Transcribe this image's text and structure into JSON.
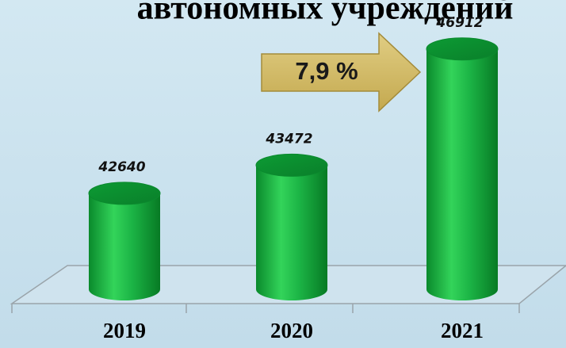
{
  "chart_data": {
    "type": "cylinder-bar",
    "title": "автономных учреждений",
    "categories": [
      "2019",
      "2020",
      "2021"
    ],
    "values": [
      42640,
      43472,
      46912
    ],
    "ylim": [
      39800,
      47000
    ],
    "annotation": "7,9 %"
  }
}
